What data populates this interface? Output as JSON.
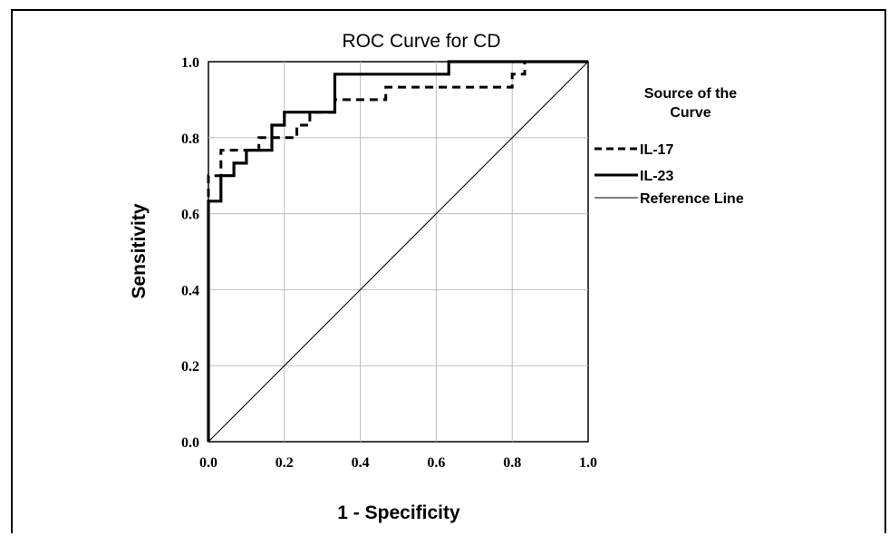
{
  "chart_data": {
    "type": "line",
    "title": "ROC Curve for CD",
    "xlabel": "1 - Specificity",
    "ylabel": "Sensitivity",
    "xlim": [
      0,
      1
    ],
    "ylim": [
      0,
      1
    ],
    "grid": true,
    "x_ticks": [
      "0.0",
      "0.2",
      "0.4",
      "0.6",
      "0.8",
      "1.0"
    ],
    "y_ticks": [
      "0.0",
      "0.2",
      "0.4",
      "0.6",
      "0.8",
      "1.0"
    ],
    "legend": {
      "title": "Source of the Curve",
      "title_lines": [
        "Source of the",
        "Curve"
      ],
      "placement": "right"
    },
    "series": [
      {
        "name": "IL-17",
        "label": "IL-17",
        "style": "dashed",
        "color": "#000000",
        "points": [
          [
            0,
            0
          ],
          [
            0,
            0.7
          ],
          [
            0.033,
            0.7
          ],
          [
            0.033,
            0.767
          ],
          [
            0.133,
            0.767
          ],
          [
            0.133,
            0.8
          ],
          [
            0.233,
            0.8
          ],
          [
            0.233,
            0.833
          ],
          [
            0.267,
            0.833
          ],
          [
            0.267,
            0.867
          ],
          [
            0.333,
            0.867
          ],
          [
            0.333,
            0.9
          ],
          [
            0.467,
            0.9
          ],
          [
            0.467,
            0.933
          ],
          [
            0.8,
            0.933
          ],
          [
            0.8,
            0.967
          ],
          [
            0.833,
            0.967
          ],
          [
            0.833,
            1.0
          ],
          [
            1.0,
            1.0
          ]
        ]
      },
      {
        "name": "IL-23",
        "label": "IL-23",
        "style": "solid",
        "color": "#000000",
        "points": [
          [
            0,
            0
          ],
          [
            0,
            0.633
          ],
          [
            0.033,
            0.633
          ],
          [
            0.033,
            0.7
          ],
          [
            0.067,
            0.7
          ],
          [
            0.067,
            0.733
          ],
          [
            0.1,
            0.733
          ],
          [
            0.1,
            0.767
          ],
          [
            0.167,
            0.767
          ],
          [
            0.167,
            0.833
          ],
          [
            0.2,
            0.833
          ],
          [
            0.2,
            0.867
          ],
          [
            0.333,
            0.867
          ],
          [
            0.333,
            0.967
          ],
          [
            0.633,
            0.967
          ],
          [
            0.633,
            1.0
          ],
          [
            1.0,
            1.0
          ]
        ]
      },
      {
        "name": "Reference Line",
        "label": "Reference Line",
        "style": "thin",
        "color": "#000000",
        "points": [
          [
            0,
            0
          ],
          [
            1,
            1
          ]
        ]
      }
    ]
  }
}
